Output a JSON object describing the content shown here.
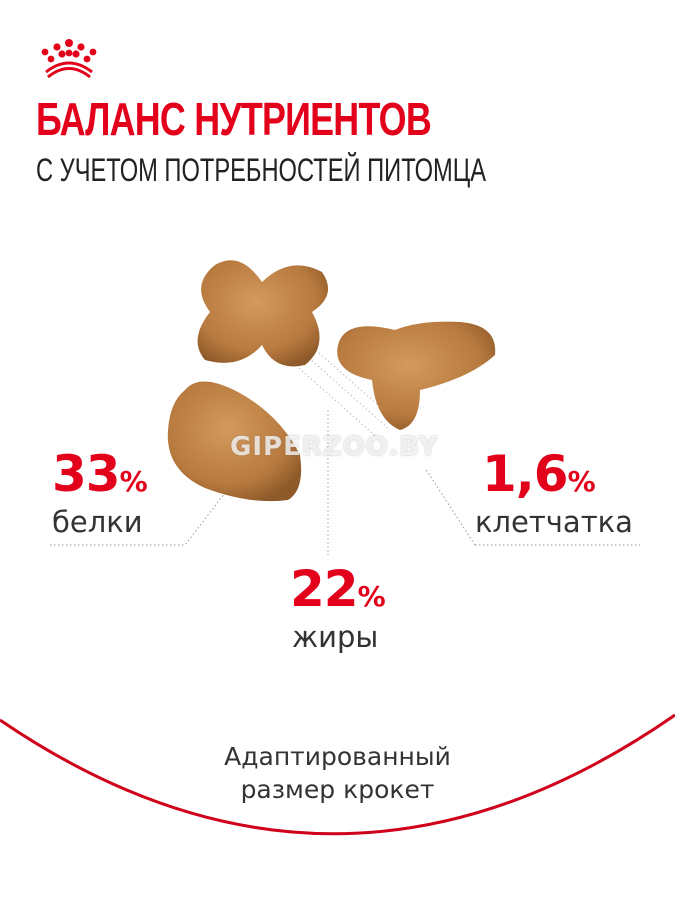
{
  "brand": {
    "logo": "royal-canin-crown",
    "color": "#e2001a"
  },
  "header": {
    "title": "БАЛАНС НУТРИЕНТОВ",
    "subtitle": "С УЧЕТОМ ПОТРЕБНОСТЕЙ ПИТОМЦА"
  },
  "nutrients": [
    {
      "value": "33",
      "unit": "%",
      "label": "белки"
    },
    {
      "value": "22",
      "unit": "%",
      "label": "жиры"
    },
    {
      "value": "1,6",
      "unit": "%",
      "label": "клетчатка"
    }
  ],
  "watermark": "GIPERZOO.BY",
  "footer": {
    "line1": "Адаптированный",
    "line2": "размер крокет"
  }
}
